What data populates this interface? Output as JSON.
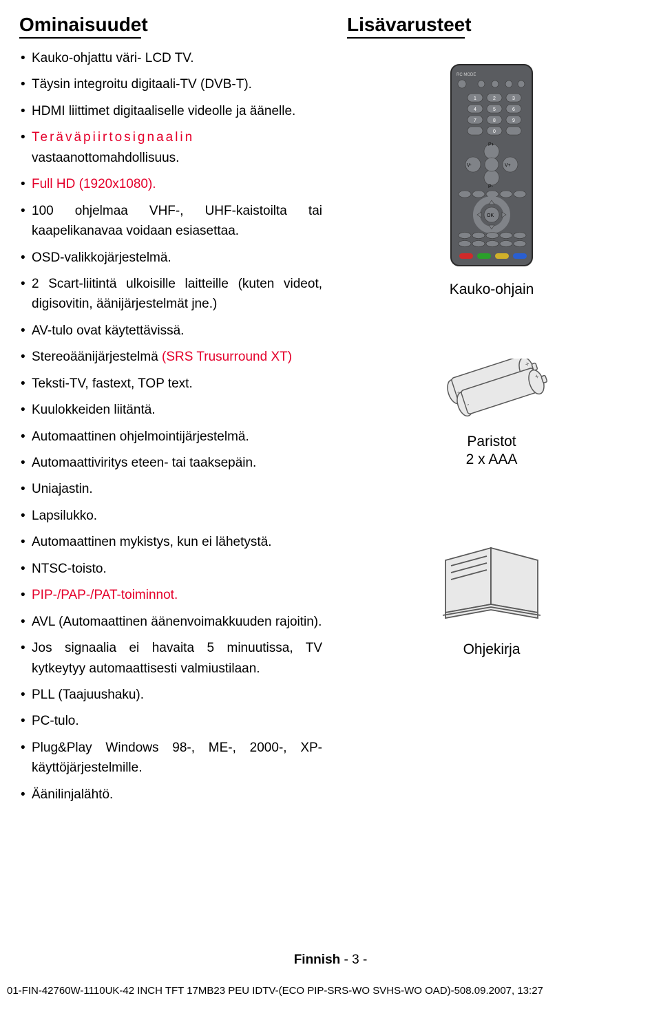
{
  "left": {
    "heading_underlined": "Ominaisuude",
    "heading_tail": "t",
    "items": [
      {
        "pre": "",
        "red": "",
        "post": "Kauko-ohjattu väri- LCD TV."
      },
      {
        "pre": "",
        "red": "",
        "post": "Täysin integroitu digitaali-TV (DVB-T)."
      },
      {
        "pre": "",
        "red": "",
        "post": "HDMI liittimet digitaaliselle videolle ja äänelle."
      },
      {
        "pre": "",
        "red_spaced": "Teräväpiirtosignaalin",
        "post": " vastaanottomahdollisuus."
      },
      {
        "pre": "",
        "red": "Full HD (1920x1080).",
        "post": ""
      },
      {
        "pre": "",
        "red": "",
        "post": "100 ohjelmaa VHF-, UHF-kaistoilta tai kaapelikanavaa voidaan esiasettaa."
      },
      {
        "pre": "",
        "red": "",
        "post": "OSD-valikkojärjestelmä."
      },
      {
        "pre": "",
        "red": "",
        "post": "2 Scart-liitintä ulkoisille laitteille (kuten videot, digisovitin, äänijärjestelmät jne.)"
      },
      {
        "pre": "",
        "red": "",
        "post": "AV-tulo ovat käytettävissä."
      },
      {
        "pre": "Stereoäänijärjestelmä ",
        "red": "(SRS Trusurround XT)",
        "post": ""
      },
      {
        "pre": "",
        "red": "",
        "post": "Teksti-TV, fastext, TOP text."
      },
      {
        "pre": "",
        "red": "",
        "post": "Kuulokkeiden liitäntä."
      },
      {
        "pre": "",
        "red": "",
        "post": "Automaattinen ohjelmointijärjestelmä."
      },
      {
        "pre": "",
        "red": "",
        "post": "Automaattiviritys eteen- tai taaksepäin."
      },
      {
        "pre": "",
        "red": "",
        "post": "Uniajastin."
      },
      {
        "pre": "",
        "red": "",
        "post": "Lapsilukko."
      },
      {
        "pre": "",
        "red": "",
        "post": "Automaattinen mykistys, kun ei lähetystä."
      },
      {
        "pre": "",
        "red": "",
        "post": "NTSC-toisto."
      },
      {
        "pre": "",
        "red": "PIP-/PAP-/PAT-toiminnot.",
        "post": ""
      },
      {
        "pre": "",
        "red": "",
        "post": "AVL (Automaattinen äänenvoimakkuuden rajoitin)."
      },
      {
        "pre": "",
        "red": "",
        "post": "Jos signaalia ei havaita 5 minuutissa, TV kytkeytyy automaattisesti valmiustilaan."
      },
      {
        "pre": "",
        "red": "",
        "post": "PLL (Taajuushaku)."
      },
      {
        "pre": "",
        "red": "",
        "post": "PC-tulo."
      },
      {
        "pre": "",
        "red": "",
        "post": "Plug&Play Windows 98-, ME-, 2000-, XP-käyttöjärjestelmille."
      },
      {
        "pre": "",
        "red": "",
        "post": "Äänilinjalähtö."
      }
    ]
  },
  "right": {
    "heading_underlined": "Lisävarustee",
    "heading_tail": "t",
    "remote_label": "Kauko-ohjain",
    "batteries_label": "Paristot",
    "batteries_sub": "2 x AAA",
    "book_label": "Ohjekirja"
  },
  "footer": {
    "lang": "Finnish",
    "page": " - 3 -",
    "file": "01-FIN-42760W-1110UK-42 INCH TFT 17MB23 PEU IDTV-(ECO PIP-SRS-WO SVHS-WO OAD)-508.09.2007, 13:27"
  },
  "style": {
    "red": "#e4002b",
    "remote": {
      "body_fill": "#5a5c60",
      "body_stroke": "#2a2a2a",
      "btn_fill": "#808388",
      "btn_stroke": "#3a3a3a",
      "text": "#d0d0d0",
      "label_green": "#3fb54f",
      "label_red": "#e4002b",
      "label_yellow": "#e8c000",
      "colbtn_blue": "#2a5fd0",
      "colbtn_red": "#d02a2a",
      "colbtn_green": "#2aa02a",
      "colbtn_yellow": "#d0b02a"
    },
    "batteries": {
      "fill": "#e8e8e8",
      "stroke": "#5a5a5a"
    },
    "book": {
      "fill": "#e8e8e8",
      "stroke": "#5a5a5a"
    }
  }
}
